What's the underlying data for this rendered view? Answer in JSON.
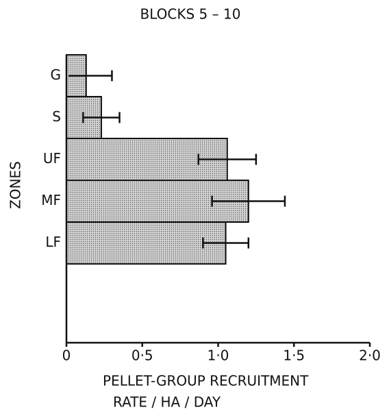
{
  "chart_data": {
    "type": "hbar",
    "title": "BLOCKS 5 – 10",
    "y_label": "ZONES",
    "x_label": [
      "PELLET-GROUP RECRUITMENT",
      "RATE / HA / DAY"
    ],
    "categories": [
      "G",
      "S",
      "UF",
      "MF",
      "LF"
    ],
    "values": [
      0.13,
      0.23,
      1.06,
      1.2,
      1.05
    ],
    "errors": [
      0.17,
      0.12,
      0.19,
      0.24,
      0.15
    ],
    "color": "#d4d4d4",
    "xlim": [
      0,
      2
    ],
    "xticks": [
      0,
      {
        "value": 0.5,
        "label": "0·5"
      },
      {
        "value": 1,
        "label": "1·0"
      },
      {
        "value": 1.5,
        "label": "1·5"
      },
      {
        "value": 2,
        "label": "2·0"
      }
    ],
    "grid": false
  }
}
